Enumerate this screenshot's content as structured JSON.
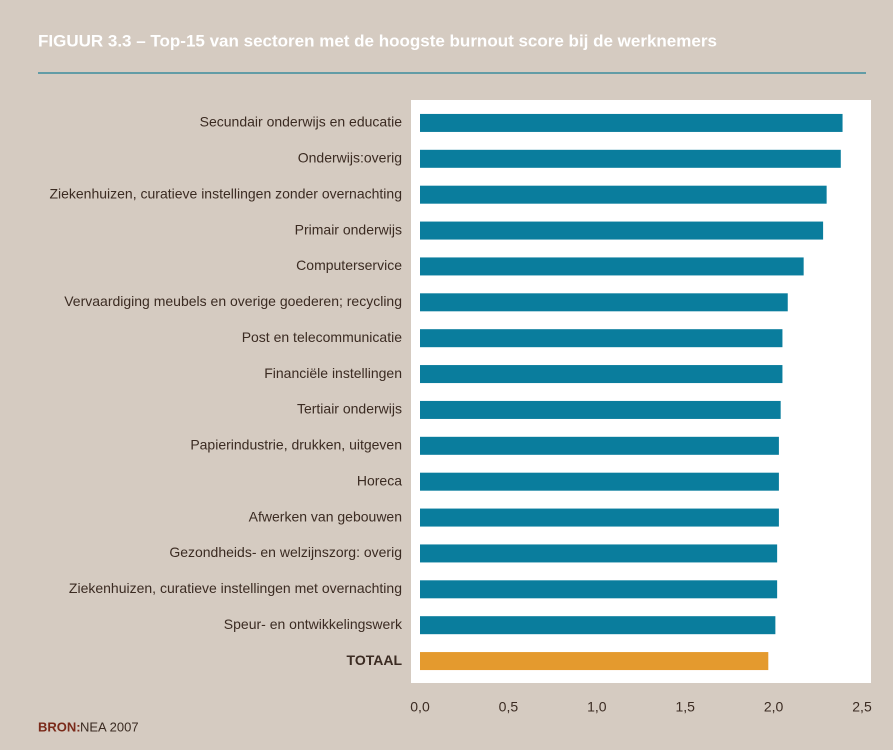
{
  "chart_data": {
    "type": "hbar",
    "title": "FIGUUR 3.3  –  Top-15 van sectoren met de hoogste burnout score bij de werknemers",
    "categories": [
      "Secundair onderwijs en educatie",
      "Onderwijs:overig",
      "Ziekenhuizen, curatieve instellingen zonder overnachting",
      "Primair onderwijs",
      "Computerservice",
      "Vervaardiging meubels en overige goederen; recycling",
      "Post en telecommunicatie",
      "Financiële instellingen",
      "Tertiair onderwijs",
      "Papierindustrie, drukken, uitgeven",
      "Horeca",
      "Afwerken van gebouwen",
      "Gezondheids- en welzijnszorg: overig",
      "Ziekenhuizen, curatieve instellingen met overnachting",
      "Speur- en ontwikkelingswerk",
      "TOTAAL"
    ],
    "values": [
      2.39,
      2.38,
      2.3,
      2.28,
      2.17,
      2.08,
      2.05,
      2.05,
      2.04,
      2.03,
      2.03,
      2.03,
      2.02,
      2.02,
      2.01,
      1.97
    ],
    "colors": [
      "#0a7d9d",
      "#0a7d9d",
      "#0a7d9d",
      "#0a7d9d",
      "#0a7d9d",
      "#0a7d9d",
      "#0a7d9d",
      "#0a7d9d",
      "#0a7d9d",
      "#0a7d9d",
      "#0a7d9d",
      "#0a7d9d",
      "#0a7d9d",
      "#0a7d9d",
      "#0a7d9d",
      "#e49a2e"
    ],
    "xlim": [
      0,
      2.5
    ],
    "xticks": [
      {
        "value": 0,
        "label": "0,0"
      },
      {
        "value": 0.5,
        "label": "0,5"
      },
      {
        "value": 1,
        "label": "1,0"
      },
      {
        "value": 1.5,
        "label": "1,5"
      },
      {
        "value": 2,
        "label": "2,0"
      },
      {
        "value": 2.5,
        "label": "2,5"
      }
    ],
    "grid": false,
    "source_label": "BRON:",
    "source": "NEA 2007"
  }
}
